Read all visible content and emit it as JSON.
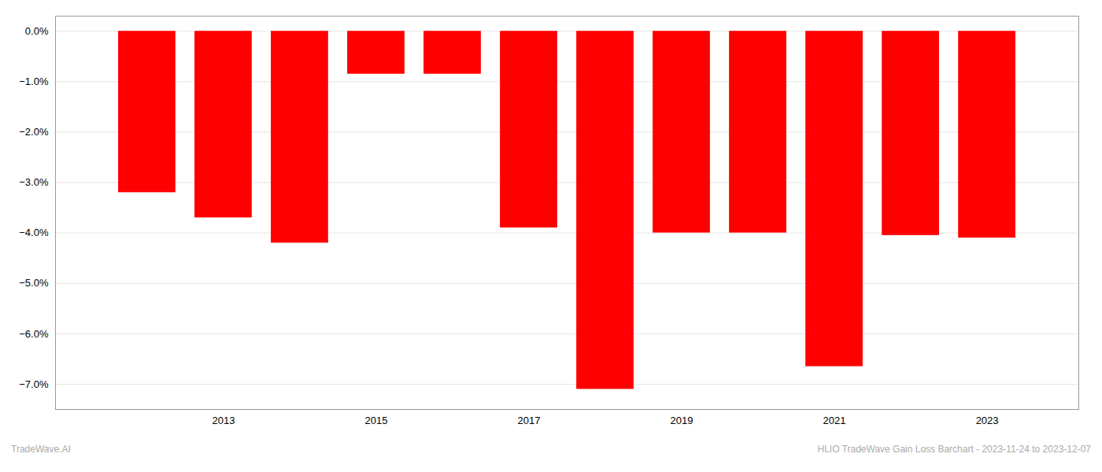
{
  "chart_data": {
    "type": "bar",
    "x": [
      2012,
      2013,
      2014,
      2015,
      2016,
      2017,
      2018,
      2019,
      2020,
      2021,
      2022,
      2023
    ],
    "values": [
      -3.2,
      -3.7,
      -4.2,
      -0.85,
      -0.85,
      -3.9,
      -7.1,
      -4.0,
      -4.0,
      -6.65,
      -4.05,
      -4.1
    ],
    "color": "#ff0000",
    "xlim": [
      2010.8,
      2024.2
    ],
    "xticks": [
      2013,
      2015,
      2017,
      2019,
      2021,
      2023
    ],
    "ylim": [
      -7.5,
      0.3
    ],
    "yticks": [
      {
        "value": 0.0,
        "label": "0.0%"
      },
      {
        "value": -1.0,
        "label": "−1.0%"
      },
      {
        "value": -2.0,
        "label": "−2.0%"
      },
      {
        "value": -3.0,
        "label": "−3.0%"
      },
      {
        "value": -4.0,
        "label": "−4.0%"
      },
      {
        "value": -5.0,
        "label": "−5.0%"
      },
      {
        "value": -6.0,
        "label": "−6.0%"
      },
      {
        "value": -7.0,
        "label": "−7.0%"
      }
    ],
    "grid": true,
    "annotations": [
      "TradeWave.AI",
      "HLIO TradeWave Gain Loss Barchart - 2023-11-24 to 2023-12-07"
    ]
  }
}
